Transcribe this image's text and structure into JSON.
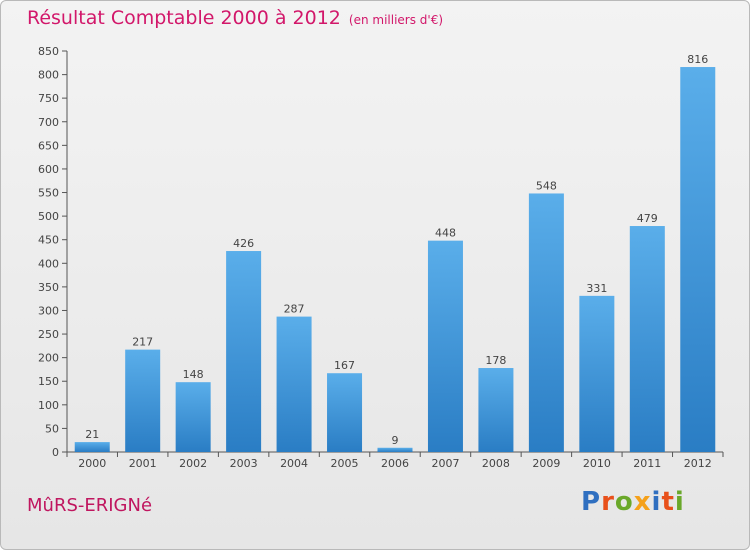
{
  "header": {
    "title": "Résultat Comptable 2000 à 2012",
    "subtitle": "(en milliers d'€)"
  },
  "footer": {
    "town": "MûRS-ERIGNé",
    "brand_letters": [
      "P",
      "r",
      "o",
      "x",
      "i",
      "t",
      "i"
    ]
  },
  "colors": {
    "title": "#d2176a",
    "bar_top": "#5aaeea",
    "bar_bottom": "#2a7dc4",
    "brand": [
      "#2f6fc0",
      "#e8501a",
      "#6aa82a",
      "#f5a11a",
      "#2f6fc0",
      "#e8501a",
      "#6aa82a"
    ]
  },
  "chart_data": {
    "type": "bar",
    "title": "Résultat Comptable 2000 à 2012",
    "subtitle": "(en milliers d'€)",
    "xlabel": "",
    "ylabel": "",
    "categories": [
      "2000",
      "2001",
      "2002",
      "2003",
      "2004",
      "2005",
      "2006",
      "2007",
      "2008",
      "2009",
      "2010",
      "2011",
      "2012"
    ],
    "values": [
      21,
      217,
      148,
      426,
      287,
      167,
      9,
      448,
      178,
      548,
      331,
      479,
      816
    ],
    "ylim": [
      0,
      850
    ],
    "yticks": [
      0,
      50,
      100,
      150,
      200,
      250,
      300,
      350,
      400,
      450,
      500,
      550,
      600,
      650,
      700,
      750,
      800,
      850
    ],
    "grid": false,
    "legend": "none"
  }
}
